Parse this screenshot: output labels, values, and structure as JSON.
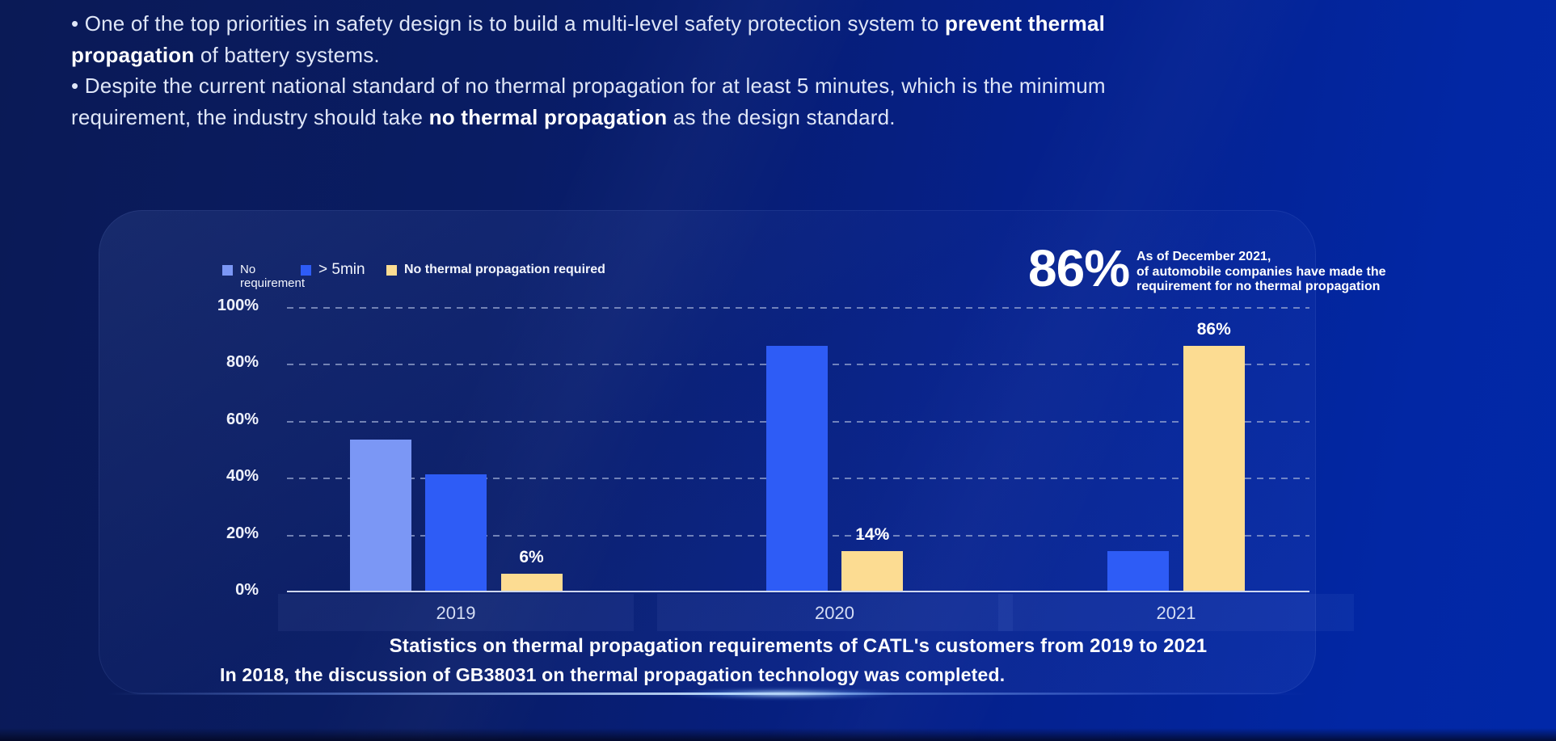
{
  "intro": {
    "lines": [
      [
        {
          "t": "• One of the top priorities in safety design is to build a multi-level safety protection system to ",
          "b": false
        },
        {
          "t": "prevent thermal",
          "b": true
        }
      ],
      [
        {
          "t": "propagation",
          "b": true
        },
        {
          "t": " of battery systems.",
          "b": false
        }
      ],
      [
        {
          "t": "• Despite the current national standard of no thermal propagation for at least 5 minutes, which is the minimum",
          "b": false
        }
      ],
      [
        {
          "t": "requirement, the industry should take ",
          "b": false
        },
        {
          "t": "no thermal propagation",
          "b": true
        },
        {
          "t": " as the design standard.",
          "b": false
        }
      ]
    ]
  },
  "panel": {
    "legend": [
      {
        "label": "No requirement",
        "color": "#7b97f5"
      },
      {
        "label": "> 5min",
        "color": "#2e5cf6"
      },
      {
        "label": "No thermal propagation required",
        "color": "#fcdc92"
      }
    ],
    "callout": {
      "value": "86%",
      "lines": [
        "As of December 2021,",
        "of automobile companies have made the",
        "requirement for no thermal propagation"
      ]
    },
    "caption": "Statistics on thermal propagation requirements of CATL's customers from 2019 to 2021",
    "footnote": "In 2018, the discussion of GB38031 on thermal propagation technology was completed."
  },
  "chart_data": {
    "type": "bar",
    "title": "Statistics on thermal propagation requirements of CATL's customers from 2019 to 2021",
    "categories": [
      "2019",
      "2020",
      "2021"
    ],
    "series": [
      {
        "name": "No requirement",
        "color": "#7b97f5",
        "values": [
          53,
          0,
          0
        ]
      },
      {
        "name": "> 5min",
        "color": "#2e5cf6",
        "values": [
          41,
          86,
          14
        ]
      },
      {
        "name": "No thermal propagation required",
        "color": "#fcdc92",
        "values": [
          6,
          14,
          86
        ]
      }
    ],
    "data_labels": [
      {
        "category": "2019",
        "series": "No thermal propagation required",
        "text": "6%"
      },
      {
        "category": "2020",
        "series": "No thermal propagation required",
        "text": "14%"
      },
      {
        "category": "2021",
        "series": "No thermal propagation required",
        "text": "86%"
      }
    ],
    "y_ticks": [
      0,
      20,
      40,
      60,
      80,
      100
    ],
    "y_tick_labels": [
      "0%",
      "20%",
      "40%",
      "60%",
      "80%",
      "100%"
    ],
    "ylim": [
      0,
      100
    ],
    "grid": "dashed horizontal",
    "legend_position": "top-left"
  },
  "colors": {
    "background_left": "#0a1a56",
    "background_right": "#0128a8",
    "bar_light_blue": "#7b97f5",
    "bar_blue": "#2e5cf6",
    "bar_yellow": "#fcdc92",
    "text_primary": "#ffffff",
    "text_soft": "#dfe6f7"
  }
}
